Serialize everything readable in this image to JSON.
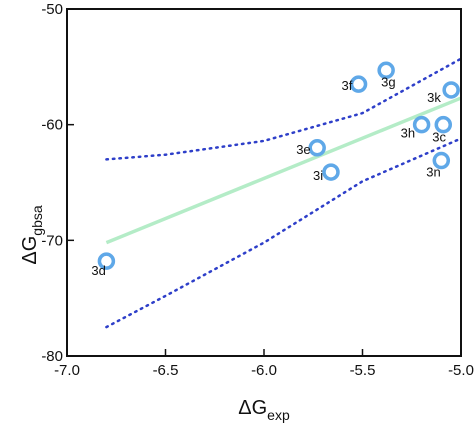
{
  "chart_data": {
    "type": "scatter",
    "title": "",
    "xlabel": {
      "main": "ΔG",
      "sub": "exp"
    },
    "ylabel": {
      "main": "ΔG",
      "sub": "gbsa"
    },
    "xlim": [
      -7.0,
      -5.0
    ],
    "ylim": [
      -80,
      -50
    ],
    "xticks": [
      -7.0,
      -6.5,
      -6.0,
      -5.5,
      -5.0
    ],
    "xtick_labels": [
      "-7.0",
      "-6.5",
      "-6.0",
      "-5.5",
      "-5.0"
    ],
    "yticks": [
      -80,
      -70,
      -60,
      -50
    ],
    "ytick_labels": [
      "-80",
      "-70",
      "-60",
      "-50"
    ],
    "grid": false,
    "points": [
      {
        "label": "3d",
        "x": -6.8,
        "y": -71.8
      },
      {
        "label": "3e",
        "x": -5.73,
        "y": -62.0
      },
      {
        "label": "3f",
        "x": -5.52,
        "y": -56.5
      },
      {
        "label": "3g",
        "x": -5.38,
        "y": -55.3
      },
      {
        "label": "3h",
        "x": -5.2,
        "y": -60.0
      },
      {
        "label": "3i",
        "x": -5.66,
        "y": -64.1
      },
      {
        "label": "3k",
        "x": -5.05,
        "y": -57.0
      },
      {
        "label": "3c",
        "x": -5.09,
        "y": -60.0
      },
      {
        "label": "3n",
        "x": -5.1,
        "y": -63.1
      }
    ],
    "fit_line": {
      "x": [
        -6.8,
        -5.0
      ],
      "y": [
        -70.2,
        -57.7
      ]
    },
    "confidence_upper": {
      "x": [
        -6.8,
        -6.5,
        -6.0,
        -5.5,
        -5.0
      ],
      "y": [
        -63.0,
        -62.6,
        -61.4,
        -59.0,
        -54.3
      ]
    },
    "confidence_lower": {
      "x": [
        -6.8,
        -6.5,
        -6.0,
        -5.5,
        -5.0
      ],
      "y": [
        -77.5,
        -74.8,
        -70.2,
        -64.9,
        -61.2
      ]
    },
    "colors": {
      "points": "#5fa8e8",
      "fit_line": "#b4ecc7",
      "confidence": "#2e3fc9",
      "axis": "#111111"
    }
  }
}
